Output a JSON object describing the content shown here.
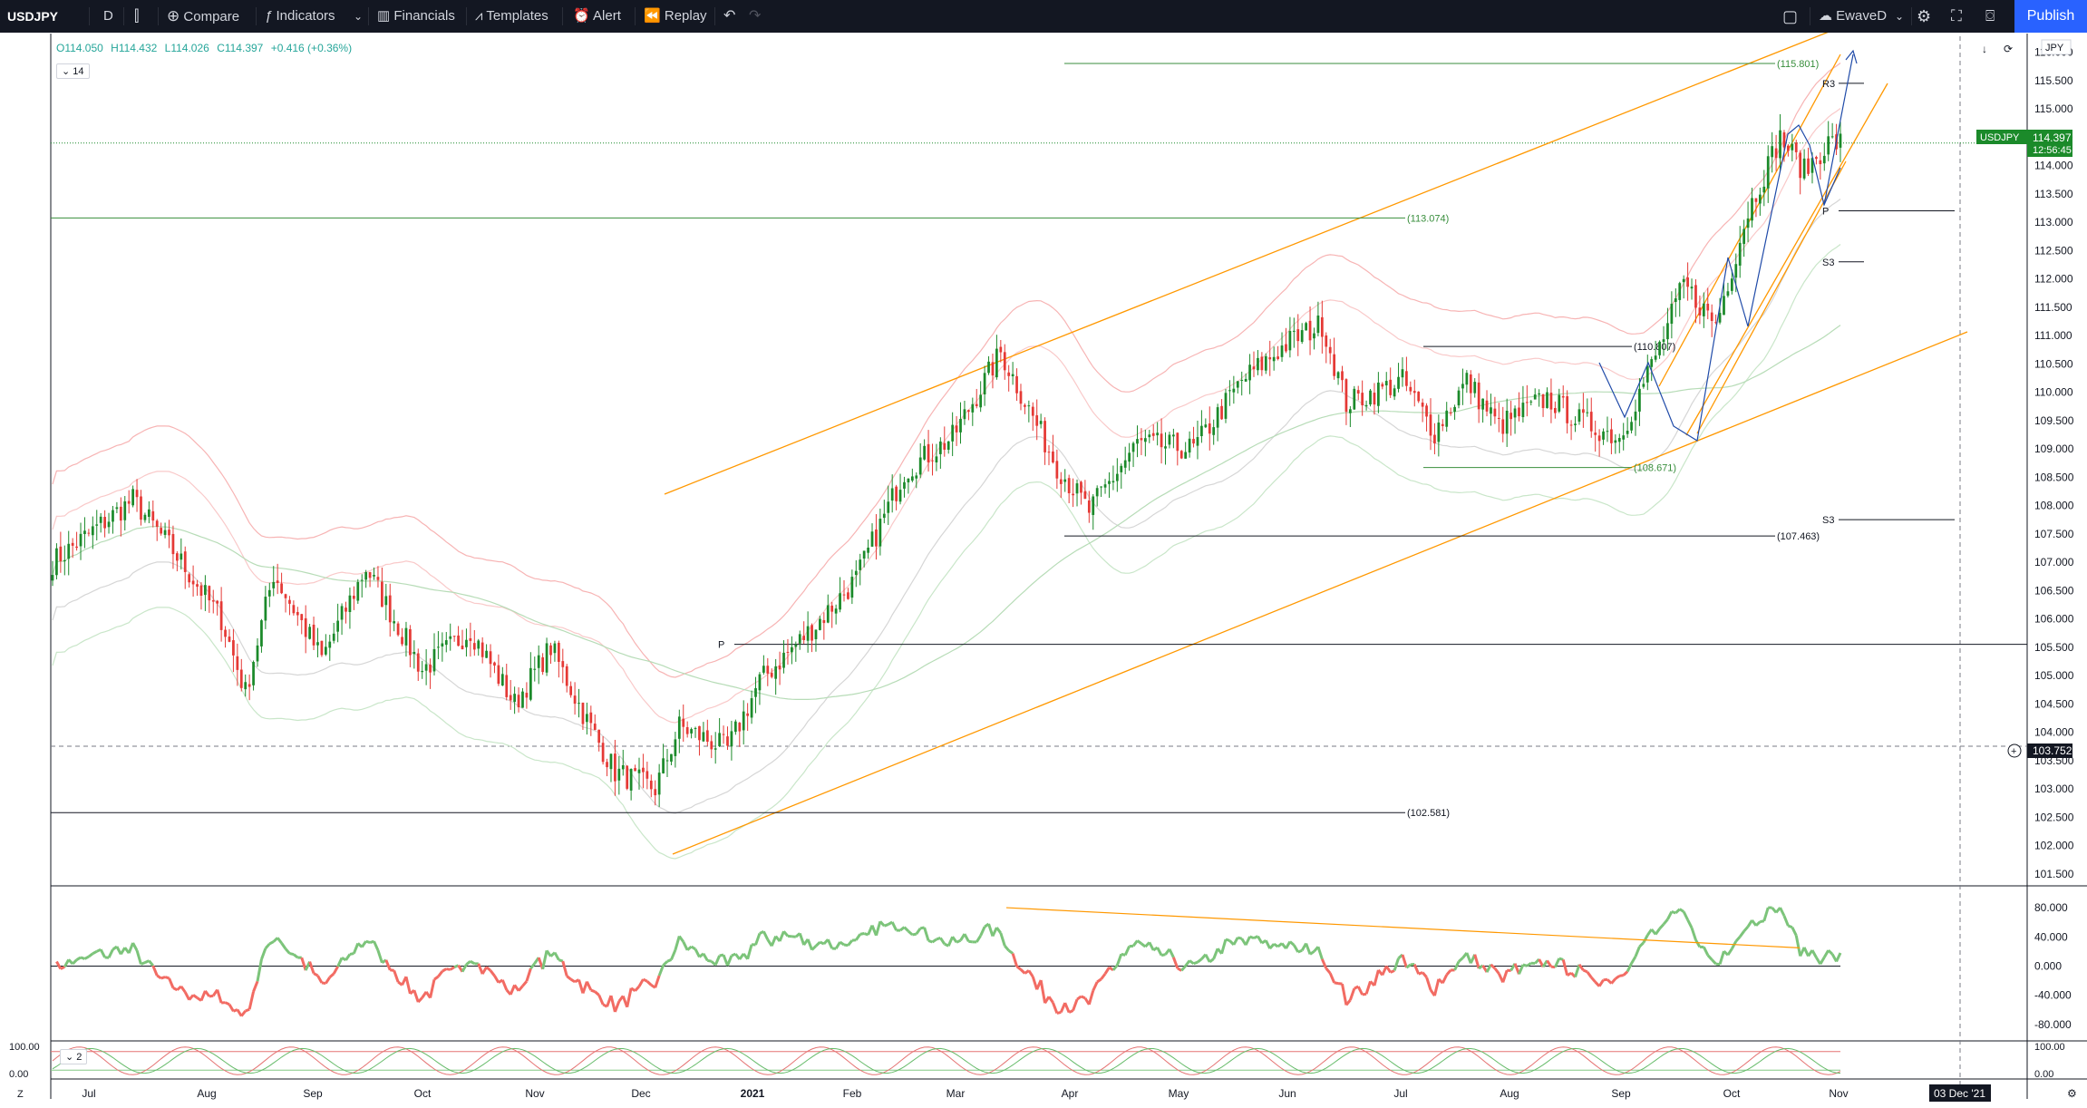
{
  "toolbar": {
    "symbol": "USDJPY",
    "interval": "D",
    "compare": "Compare",
    "indicators": "Indicators",
    "financials": "Financials",
    "templates": "Templates",
    "alert": "Alert",
    "replay": "Replay",
    "layout_name": "EwaveD",
    "publish": "Publish"
  },
  "legend": {
    "open": "O114.050",
    "high": "H114.432",
    "low": "L114.026",
    "close": "C114.397",
    "change": "+0.416 (+0.36%)",
    "pane_badge": "14",
    "osc_badge": "2"
  },
  "currency": "JPY",
  "price_label": {
    "symbol": "USDJPY",
    "price": "114.397",
    "countdown": "12:56:45"
  },
  "crosshair_price": "103.752",
  "date_label": "03 Dec '21",
  "chart_data": {
    "type": "candlestick",
    "title": "USDJPY, D",
    "x_ticks": [
      "Jul",
      "Aug",
      "Sep",
      "Oct",
      "Nov",
      "Dec",
      "2021",
      "Feb",
      "Mar",
      "Apr",
      "May",
      "Jun",
      "Jul",
      "Aug",
      "Sep",
      "Oct",
      "Nov"
    ],
    "y_ticks": [
      "116.000",
      "115.500",
      "115.000",
      "114.500",
      "114.000",
      "113.500",
      "113.000",
      "112.500",
      "112.000",
      "111.500",
      "111.000",
      "110.500",
      "110.000",
      "109.500",
      "109.000",
      "108.500",
      "108.000",
      "107.500",
      "107.000",
      "106.500",
      "106.000",
      "105.500",
      "105.000",
      "104.500",
      "104.000",
      "103.500",
      "103.000",
      "102.500",
      "102.000",
      "101.500"
    ],
    "ylim": [
      101.4,
      116.2
    ],
    "anchors": [
      {
        "t": 0,
        "y": 107.0
      },
      {
        "t": 20,
        "y": 108.1
      },
      {
        "t": 30,
        "y": 107.2
      },
      {
        "t": 42,
        "y": 106.0
      },
      {
        "t": 48,
        "y": 104.7
      },
      {
        "t": 55,
        "y": 106.8
      },
      {
        "t": 67,
        "y": 105.3
      },
      {
        "t": 78,
        "y": 106.9
      },
      {
        "t": 92,
        "y": 105.1
      },
      {
        "t": 104,
        "y": 105.8
      },
      {
        "t": 115,
        "y": 104.5
      },
      {
        "t": 124,
        "y": 105.5
      },
      {
        "t": 133,
        "y": 104.2
      },
      {
        "t": 140,
        "y": 103.3
      },
      {
        "t": 150,
        "y": 103.0
      },
      {
        "t": 156,
        "y": 104.1
      },
      {
        "t": 168,
        "y": 103.7
      },
      {
        "t": 176,
        "y": 104.9
      },
      {
        "t": 190,
        "y": 105.9
      },
      {
        "t": 200,
        "y": 106.7
      },
      {
        "t": 212,
        "y": 108.6
      },
      {
        "t": 224,
        "y": 109.2
      },
      {
        "t": 236,
        "y": 110.7
      },
      {
        "t": 250,
        "y": 108.7
      },
      {
        "t": 258,
        "y": 107.9
      },
      {
        "t": 270,
        "y": 109.1
      },
      {
        "t": 284,
        "y": 109.0
      },
      {
        "t": 296,
        "y": 110.2
      },
      {
        "t": 308,
        "y": 110.9
      },
      {
        "t": 316,
        "y": 111.2
      },
      {
        "t": 322,
        "y": 109.8
      },
      {
        "t": 336,
        "y": 110.2
      },
      {
        "t": 344,
        "y": 109.3
      },
      {
        "t": 352,
        "y": 110.2
      },
      {
        "t": 360,
        "y": 109.4
      },
      {
        "t": 372,
        "y": 109.9
      },
      {
        "t": 380,
        "y": 109.5
      },
      {
        "t": 390,
        "y": 109.2
      },
      {
        "t": 400,
        "y": 110.8
      },
      {
        "t": 406,
        "y": 111.9
      },
      {
        "t": 414,
        "y": 111.2
      },
      {
        "t": 422,
        "y": 113.2
      },
      {
        "t": 430,
        "y": 114.5
      },
      {
        "t": 436,
        "y": 113.9
      },
      {
        "t": 442,
        "y": 114.4
      }
    ],
    "levels": [
      {
        "value": 115.801,
        "label": "(115.801)",
        "color": "#388e3c"
      },
      {
        "value": 113.074,
        "label": "(113.074)",
        "color": "#388e3c"
      },
      {
        "value": 110.807,
        "label": "(110.807)",
        "color": "#131722"
      },
      {
        "value": 108.671,
        "label": "(108.671)",
        "color": "#388e3c"
      },
      {
        "value": 107.463,
        "label": "(107.463)",
        "color": "#131722"
      },
      {
        "value": 102.581,
        "label": "(102.581)",
        "color": "#131722"
      }
    ],
    "pivots": [
      {
        "label": "R3",
        "value": 115.45
      },
      {
        "label": "P",
        "value": 113.2
      },
      {
        "label": "S3",
        "value": 112.3
      },
      {
        "label": "S3",
        "value": 107.75
      },
      {
        "label": "P",
        "value": 105.55
      }
    ],
    "oscillator": {
      "y_ticks": [
        "80.000",
        "40.000",
        "0.000",
        "-40.000",
        "-80.000"
      ],
      "ylim": [
        -90,
        90
      ]
    },
    "stoch": {
      "y_ticks": [
        "100.00",
        "0.00"
      ]
    },
    "colors": {
      "up": "#26a69a",
      "down": "#ef5350",
      "up_candle": "#1b8a2a",
      "down_candle": "#e53935",
      "channel": "#ff9800",
      "level": "#388e3c"
    }
  }
}
